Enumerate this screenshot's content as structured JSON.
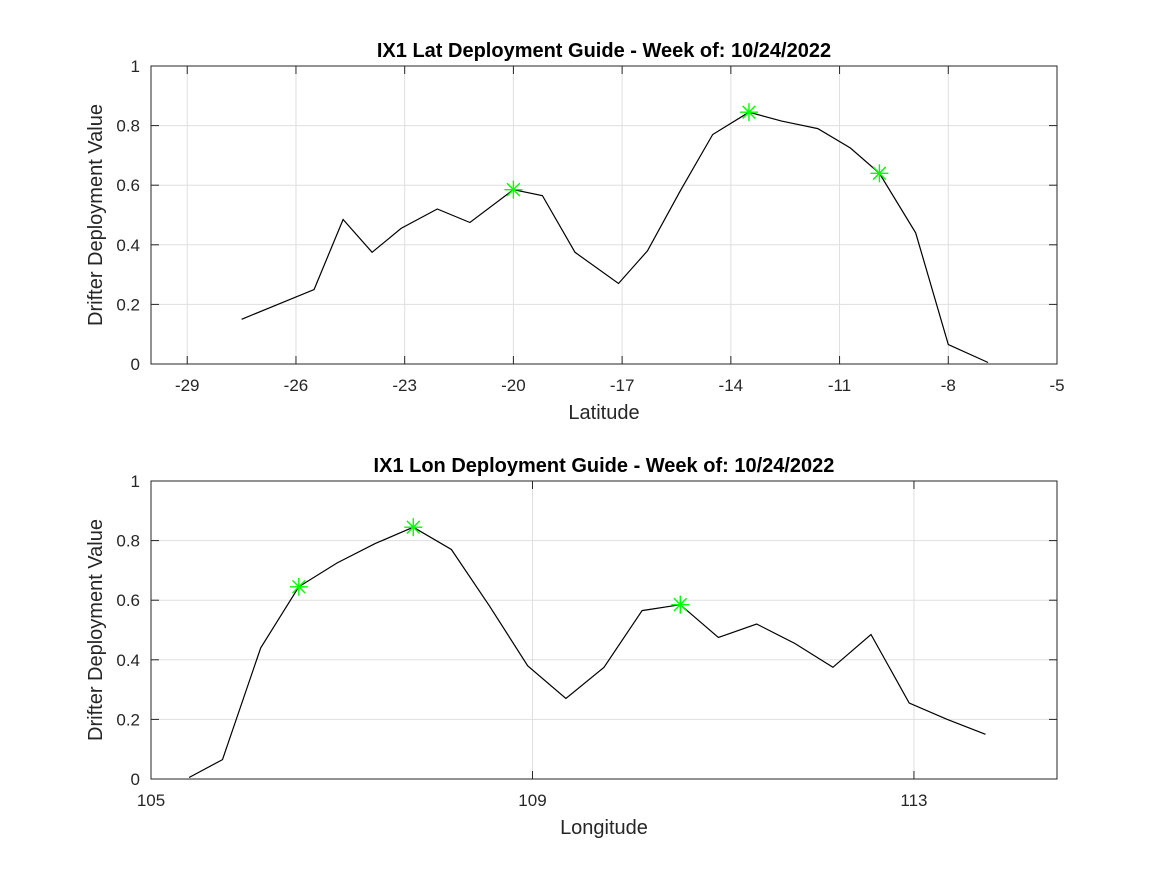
{
  "chart_data": [
    {
      "type": "line",
      "title": "IX1 Lat Deployment Guide - Week of: 10/24/2022",
      "xlabel": "Latitude",
      "ylabel": "Drifter Deployment Value",
      "xlim": [
        -30,
        -5
      ],
      "ylim": [
        0,
        1
      ],
      "xticks": [
        -29,
        -26,
        -23,
        -20,
        -17,
        -14,
        -11,
        -8,
        -5
      ],
      "yticks": [
        0,
        0.2,
        0.4,
        0.6,
        0.8,
        1
      ],
      "xtick_labels": [
        "-29",
        "-26",
        "-23",
        "-20",
        "-17",
        "-14",
        "-11",
        "-8",
        "-5"
      ],
      "ytick_labels": [
        "0",
        "0.2",
        "0.4",
        "0.6",
        "0.8",
        "1"
      ],
      "grid": true,
      "series": [
        {
          "color": "#000000",
          "x": [
            -27.5,
            -26.5,
            -25.5,
            -24.7,
            -23.9,
            -23.1,
            -22.1,
            -21.2,
            -20.0,
            -19.2,
            -18.3,
            -17.1,
            -16.3,
            -15.4,
            -14.5,
            -13.5,
            -12.6,
            -11.6,
            -10.7,
            -9.9,
            -8.9,
            -8.0,
            -6.9
          ],
          "y": [
            0.15,
            0.2,
            0.25,
            0.485,
            0.375,
            0.455,
            0.52,
            0.475,
            0.585,
            0.565,
            0.375,
            0.27,
            0.38,
            0.58,
            0.77,
            0.845,
            0.815,
            0.79,
            0.725,
            0.64,
            0.44,
            0.065,
            0.005
          ]
        }
      ],
      "highlights": {
        "color": "#00ff00",
        "marker": "asterisk",
        "points": [
          {
            "x": -20.0,
            "y": 0.585
          },
          {
            "x": -13.5,
            "y": 0.845
          },
          {
            "x": -9.9,
            "y": 0.64
          }
        ]
      }
    },
    {
      "type": "line",
      "title": "IX1 Lon Deployment Guide - Week of: 10/24/2022",
      "xlabel": "Longitude",
      "ylabel": "Drifter Deployment Value",
      "xlim": [
        105,
        114.5
      ],
      "ylim": [
        0,
        1
      ],
      "xticks": [
        105,
        109,
        113
      ],
      "yticks": [
        0,
        0.2,
        0.4,
        0.6,
        0.8,
        1
      ],
      "xtick_labels": [
        "105",
        "109",
        "113"
      ],
      "ytick_labels": [
        "0",
        "0.2",
        "0.4",
        "0.6",
        "0.8",
        "1"
      ],
      "grid": true,
      "series": [
        {
          "color": "#000000",
          "x": [
            105.4,
            105.75,
            106.15,
            106.55,
            106.95,
            107.35,
            107.75,
            108.15,
            108.55,
            108.95,
            109.35,
            109.75,
            110.15,
            110.55,
            110.95,
            111.35,
            111.75,
            112.15,
            112.55,
            112.95,
            113.35,
            113.75
          ],
          "y": [
            0.005,
            0.065,
            0.44,
            0.645,
            0.725,
            0.79,
            0.845,
            0.77,
            0.58,
            0.38,
            0.27,
            0.375,
            0.565,
            0.585,
            0.475,
            0.52,
            0.455,
            0.375,
            0.485,
            0.255,
            0.2,
            0.15
          ]
        }
      ],
      "highlights": {
        "color": "#00ff00",
        "marker": "asterisk",
        "points": [
          {
            "x": 106.55,
            "y": 0.645
          },
          {
            "x": 107.75,
            "y": 0.845
          },
          {
            "x": 110.55,
            "y": 0.585
          }
        ]
      }
    }
  ]
}
